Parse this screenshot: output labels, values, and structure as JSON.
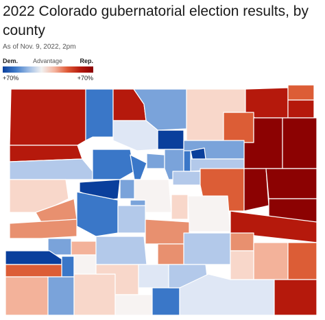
{
  "title": "2022 Colorado gubernatorial election results, by county",
  "subtitle": "As of Nov. 9, 2022, 2pm",
  "legend": {
    "dem_label": "Dem.",
    "middle_label": "Advantage",
    "rep_label": "Rep.",
    "left_tick": "+70%",
    "right_tick": "+70%",
    "colors": [
      "#0a3f9c",
      "#3f7bc9",
      "#9cbbe4",
      "#f1f1f1",
      "#f4b5a0",
      "#df5a37",
      "#b51a0e",
      "#8b0000"
    ]
  },
  "palette": {
    "D5": "#0a3f9c",
    "D4": "#3a77c8",
    "D3": "#7aa3da",
    "D2": "#b3c9ea",
    "D1": "#dfe7f5",
    "N": "#f7f3f2",
    "R1": "#f8d7ca",
    "R2": "#f3b29a",
    "R3": "#e8906f",
    "R4": "#dc5d36",
    "R5": "#b5190c",
    "R6": "#8c0202"
  }
}
